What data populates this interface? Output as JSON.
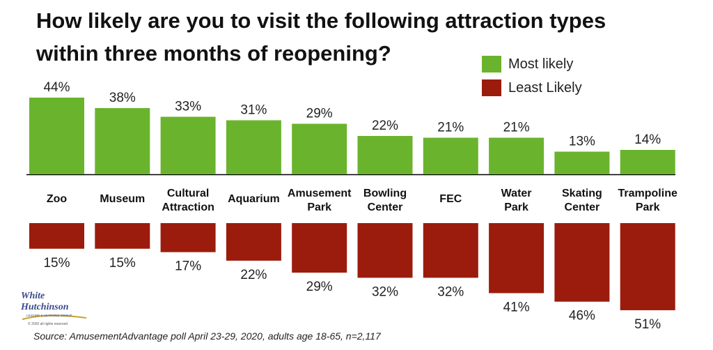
{
  "title_lines": [
    "How likely are you to visit the following attraction types",
    "within three months of reopening?"
  ],
  "source": "Source: AmusementAdvantage poll April 23-29, 2020, adults age 18-65, n=2,117",
  "logo": {
    "line1": "White",
    "line2": "Hutchinson",
    "line3": "LEISURE & LEARNING GROUP",
    "line4": "© 2020 all rights reserved"
  },
  "colors": {
    "most": "#6ab42d",
    "least": "#9b1c0c"
  },
  "chart_data": {
    "type": "bar",
    "title": "How likely are you to visit the following attraction types within three months of reopening?",
    "categories": [
      [
        "Zoo"
      ],
      [
        "Museum"
      ],
      [
        "Cultural",
        "Attraction"
      ],
      [
        "Aquarium"
      ],
      [
        "Amusement",
        "Park"
      ],
      [
        "Bowling",
        "Center"
      ],
      [
        "FEC"
      ],
      [
        "Water",
        "Park"
      ],
      [
        "Skating",
        "Center"
      ],
      [
        "Trampoline",
        "Park"
      ]
    ],
    "series": [
      {
        "name": "Most likely",
        "values": [
          44,
          38,
          33,
          31,
          29,
          22,
          21,
          21,
          13,
          14
        ],
        "labels": [
          "44%",
          "38%",
          "33%",
          "31%",
          "29%",
          "22%",
          "21%",
          "21%",
          "13%",
          "14%"
        ]
      },
      {
        "name": "Least Likely",
        "values": [
          15,
          15,
          17,
          22,
          29,
          32,
          32,
          41,
          46,
          51
        ],
        "labels": [
          "15%",
          "15%",
          "17%",
          "22%",
          "29%",
          "32%",
          "32%",
          "41%",
          "46%",
          "51%"
        ]
      }
    ],
    "unit": "%",
    "legend_position": "top-right"
  }
}
